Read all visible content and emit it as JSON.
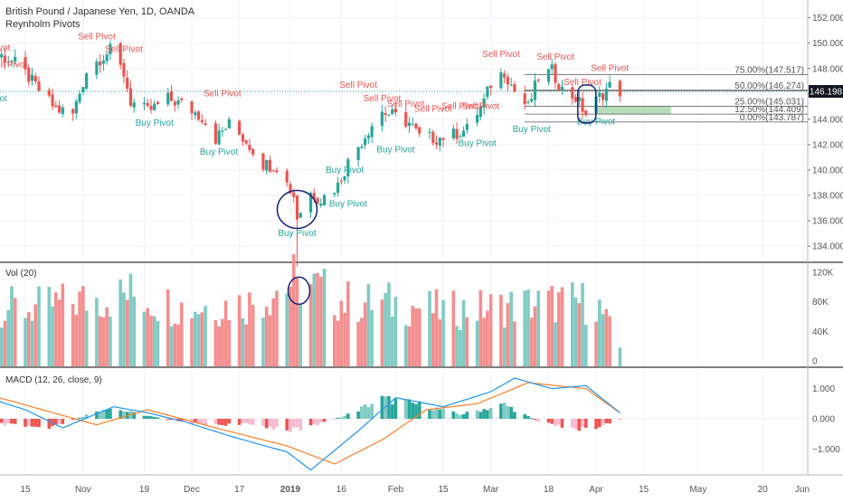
{
  "header": {
    "symbol_title": "British Pound / Japanese Yen, 1D, OANDA",
    "indicator_name": "Reynholm Pivots"
  },
  "volume_pane": {
    "label": "Vol (20)",
    "ticks": [
      "120K",
      "80K",
      "40K",
      "0"
    ]
  },
  "macd_pane": {
    "label": "MACD (12, 26, close, 9)",
    "ticks": [
      "1.000",
      "0.000",
      "−1.000"
    ]
  },
  "colors": {
    "bull": "#26a69a",
    "bear": "#ef5350",
    "bull_vol": "#80cbc4",
    "bear_vol": "#f48f8f",
    "macd_line": "#2196f3",
    "signal_line": "#ff7f27",
    "annotation": "#1a237e",
    "fib_zone": "#a5d6a7",
    "last_price_bg": "#131722"
  },
  "chart_data": {
    "type": "candlestick",
    "title": "British Pound / Japanese Yen, 1D, OANDA",
    "y_axis": {
      "ticks": [
        152,
        150,
        148,
        146,
        144,
        142,
        140,
        138,
        136,
        134
      ],
      "labels": [
        "152.000",
        "150.000",
        "148.000",
        "146.000",
        "144.000",
        "142.000",
        "140.000",
        "138.000",
        "136.000",
        "134.000"
      ],
      "range": [
        132.8,
        153.4
      ]
    },
    "x_axis": {
      "labels": [
        "15",
        "Nov",
        "19",
        "Dec",
        "17",
        "2019",
        "16",
        "Feb",
        "15",
        "Mar",
        "18",
        "Apr",
        "15",
        "May",
        "20",
        "Jun"
      ]
    },
    "last_price": {
      "label": "146.198",
      "value": 146.198
    },
    "fibonacci": [
      {
        "label": "75.00%(147.517)",
        "value": 147.517
      },
      {
        "label": "50.00%(146.274)",
        "value": 146.274
      },
      {
        "label": "25.00%(145.031)",
        "value": 145.031
      },
      {
        "label": "12.50%(144.409)",
        "value": 144.409
      },
      {
        "label": "0.00%(143.787)",
        "value": 143.787
      }
    ],
    "pivots": [
      {
        "label": "Sell Pivot",
        "x": "Oct 05",
        "y": 149.4
      },
      {
        "label": "Sell Pivot",
        "x": "Oct 10",
        "y": 148.1
      },
      {
        "label": "Buy Pivot",
        "x": "Oct 04",
        "y": 145.4
      },
      {
        "label": "Sell Pivot",
        "x": "Nov 05",
        "y": 150.3
      },
      {
        "label": "Sell Pivot",
        "x": "Nov 13",
        "y": 149.3
      },
      {
        "label": "Buy Pivot",
        "x": "Nov 22",
        "y": 143.5
      },
      {
        "label": "Sell Pivot",
        "x": "Dec 12",
        "y": 145.8
      },
      {
        "label": "Buy Pivot",
        "x": "Dec 11",
        "y": 141.2
      },
      {
        "label": "Sell Pivot",
        "x": "Jan 21",
        "y": 146.5
      },
      {
        "label": "Sell Pivot",
        "x": "Jan 28",
        "y": 145.4
      },
      {
        "label": "Sell Pivot",
        "x": "Feb 04",
        "y": 145.0
      },
      {
        "label": "Sell Pivot",
        "x": "Feb 12",
        "y": 144.6
      },
      {
        "label": "Sell Pivot",
        "x": "Feb 20",
        "y": 144.8
      },
      {
        "label": "Sell Pivot",
        "x": "Feb 26",
        "y": 144.8
      },
      {
        "label": "Sell Pivot",
        "x": "Mar 04",
        "y": 148.9
      },
      {
        "label": "Sell Pivot",
        "x": "Mar 20",
        "y": 148.7
      },
      {
        "label": "Sell Pivot",
        "x": "Mar 28",
        "y": 146.7
      },
      {
        "label": "Sell Pivot",
        "x": "Apr 05",
        "y": 147.8
      },
      {
        "label": "Buy Pivot",
        "x": "Jan 18",
        "y": 137.1
      },
      {
        "label": "Buy Pivot",
        "x": "Jan 03",
        "y": 134.8
      },
      {
        "label": "Buy Pivot",
        "x": "Jan 17",
        "y": 139.8
      },
      {
        "label": "Buy Pivot",
        "x": "Feb 01",
        "y": 141.4
      },
      {
        "label": "Buy Pivot",
        "x": "Feb 25",
        "y": 141.9
      },
      {
        "label": "Buy Pivot",
        "x": "Mar 13",
        "y": 143.0
      },
      {
        "label": "Buy Pivot",
        "x": "Apr 01",
        "y": 143.6
      }
    ],
    "price_path": [
      [
        "Oct 08",
        149.0
      ],
      [
        "Oct 12",
        148.4
      ],
      [
        "Oct 16",
        147.3
      ],
      [
        "Oct 19",
        146.3
      ],
      [
        "Oct 24",
        144.8
      ],
      [
        "Oct 29",
        144.4
      ],
      [
        "Nov 02",
        147.8
      ],
      [
        "Nov 06",
        148.8
      ],
      [
        "Nov 09",
        149.4
      ],
      [
        "Nov 13",
        147.6
      ],
      [
        "Nov 15",
        145.4
      ],
      [
        "Nov 20",
        144.6
      ],
      [
        "Nov 26",
        145.6
      ],
      [
        "Nov 30",
        145.2
      ],
      [
        "Dec 06",
        144.2
      ],
      [
        "Dec 10",
        142.5
      ],
      [
        "Dec 14",
        143.6
      ],
      [
        "Dec 19",
        142.3
      ],
      [
        "Dec 24",
        140.5
      ],
      [
        "Dec 28",
        140.3
      ],
      [
        "Jan 02",
        138.0
      ],
      [
        "Jan 03",
        136.3
      ],
      [
        "Jan 07",
        138.2
      ],
      [
        "Jan 10",
        137.7
      ],
      [
        "Jan 15",
        138.8
      ],
      [
        "Jan 18",
        140.6
      ],
      [
        "Jan 22",
        142.3
      ],
      [
        "Jan 25",
        143.6
      ],
      [
        "Jan 28",
        144.6
      ],
      [
        "Feb 01",
        144.2
      ],
      [
        "Feb 05",
        143.7
      ],
      [
        "Feb 08",
        142.6
      ],
      [
        "Feb 13",
        142.5
      ],
      [
        "Feb 18",
        142.8
      ],
      [
        "Feb 22",
        143.2
      ],
      [
        "Feb 27",
        145.4
      ],
      [
        "Mar 01",
        146.8
      ],
      [
        "Mar 05",
        147.8
      ],
      [
        "Mar 08",
        146.2
      ],
      [
        "Mar 12",
        144.9
      ],
      [
        "Mar 15",
        147.3
      ],
      [
        "Mar 19",
        147.8
      ],
      [
        "Mar 22",
        146.3
      ],
      [
        "Mar 26",
        145.7
      ],
      [
        "Mar 29",
        144.4
      ],
      [
        "Apr 02",
        145.8
      ],
      [
        "Apr 05",
        146.6
      ],
      [
        "Apr 08",
        146.2
      ]
    ],
    "pivot_line_value": 146.2,
    "annotations": [
      {
        "shape": "ellipse",
        "pane": "price",
        "x": "Jan 03",
        "y": 136.9
      },
      {
        "shape": "ellipse",
        "pane": "volume",
        "x": "Jan 03",
        "y": 95000
      },
      {
        "shape": "rounded-rect",
        "pane": "price",
        "x": "Mar 29",
        "y": 145.2
      }
    ],
    "volume_path": [
      [
        "Oct 01",
        80000
      ],
      [
        "Oct 15",
        70000
      ],
      [
        "Nov 01",
        82000
      ],
      [
        "Nov 15",
        90000
      ],
      [
        "Dec 01",
        72000
      ],
      [
        "Dec 20",
        78000
      ],
      [
        "Jan 03",
        110000
      ],
      [
        "Jan 17",
        80000
      ],
      [
        "Feb 01",
        78000
      ],
      [
        "Feb 15",
        68000
      ],
      [
        "Mar 01",
        72000
      ],
      [
        "Mar 15",
        78000
      ],
      [
        "Apr 01",
        80000
      ],
      [
        "Apr 08",
        18000
      ]
    ],
    "macd": {
      "macd_line": [
        [
          "Oct 01",
          0.8
        ],
        [
          "Oct 15",
          0.3
        ],
        [
          "Oct 26",
          -0.3
        ],
        [
          "Nov 10",
          0.4
        ],
        [
          "Nov 20",
          0.2
        ],
        [
          "Dec 01",
          -0.1
        ],
        [
          "Dec 15",
          -0.6
        ],
        [
          "Dec 31",
          -1.1
        ],
        [
          "Jan 07",
          -1.7
        ],
        [
          "Jan 21",
          -0.4
        ],
        [
          "Feb 01",
          0.7
        ],
        [
          "Feb 15",
          0.4
        ],
        [
          "Mar 01",
          0.9
        ],
        [
          "Mar 08",
          1.35
        ],
        [
          "Mar 19",
          1.0
        ],
        [
          "Mar 29",
          1.1
        ],
        [
          "Apr 08",
          0.2
        ]
      ],
      "signal_line": [
        [
          "Oct 01",
          0.9
        ],
        [
          "Oct 20",
          0.3
        ],
        [
          "Nov 05",
          -0.2
        ],
        [
          "Nov 20",
          0.3
        ],
        [
          "Dec 10",
          -0.3
        ],
        [
          "Dec 31",
          -0.9
        ],
        [
          "Jan 14",
          -1.5
        ],
        [
          "Jan 28",
          -0.7
        ],
        [
          "Feb 10",
          0.3
        ],
        [
          "Feb 25",
          0.5
        ],
        [
          "Mar 12",
          1.2
        ],
        [
          "Mar 29",
          1.0
        ],
        [
          "Apr 08",
          0.2
        ]
      ],
      "histogram": [
        [
          "Oct 01",
          -0.1
        ],
        [
          "Oct 22",
          -0.35
        ],
        [
          "Nov 08",
          0.4
        ],
        [
          "Nov 20",
          0.1
        ],
        [
          "Dec 05",
          -0.2
        ],
        [
          "Dec 20",
          -0.2
        ],
        [
          "Jan 03",
          -0.4
        ],
        [
          "Jan 17",
          0.1
        ],
        [
          "Jan 28",
          0.7
        ],
        [
          "Feb 08",
          0.5
        ],
        [
          "Feb 20",
          0.15
        ],
        [
          "Mar 05",
          0.5
        ],
        [
          "Mar 15",
          -0.1
        ],
        [
          "Mar 29",
          -0.4
        ],
        [
          "Apr 08",
          -0.05
        ]
      ]
    }
  }
}
